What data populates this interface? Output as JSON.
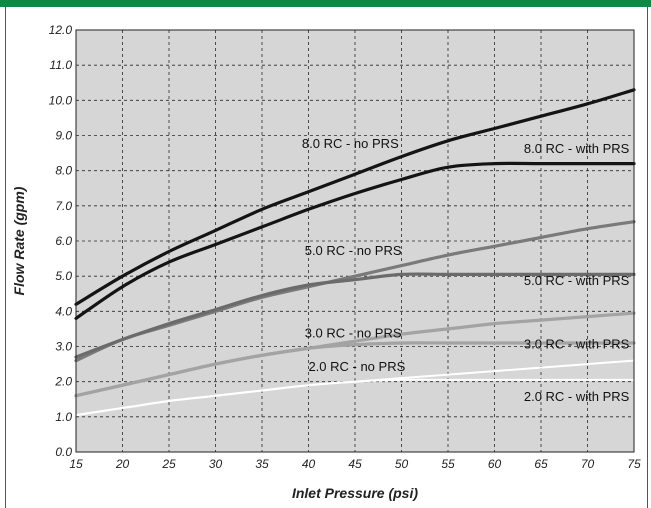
{
  "chart_data": {
    "type": "line",
    "xlabel": "Inlet Pressure (psi)",
    "ylabel": "Flow Rate (gpm)",
    "xlim": [
      15,
      75
    ],
    "ylim": [
      0,
      12
    ],
    "x_ticks": [
      "15",
      "20",
      "25",
      "30",
      "35",
      "40",
      "45",
      "50",
      "55",
      "60",
      "65",
      "70",
      "75"
    ],
    "y_ticks": [
      "0.0",
      "1.0",
      "2.0",
      "3.0",
      "4.0",
      "5.0",
      "6.0",
      "7.0",
      "8.0",
      "9.0",
      "10.0",
      "11.0",
      "12.0"
    ],
    "grid": true,
    "background": "#d6d6d6",
    "series": [
      {
        "name": "8.0 RC - no PRS",
        "color": "#141414",
        "width": 3.2,
        "x": [
          15,
          20,
          25,
          30,
          35,
          40,
          45,
          50,
          55,
          60,
          65,
          70,
          75
        ],
        "y": [
          4.2,
          5.0,
          5.7,
          6.3,
          6.9,
          7.4,
          7.9,
          8.4,
          8.85,
          9.2,
          9.55,
          9.9,
          10.3
        ]
      },
      {
        "name": "8.0 RC - with PRS",
        "color": "#141414",
        "width": 3.2,
        "x": [
          15,
          20,
          25,
          30,
          35,
          40,
          45,
          50,
          55,
          60,
          65,
          70,
          75
        ],
        "y": [
          3.8,
          4.7,
          5.4,
          5.9,
          6.4,
          6.9,
          7.35,
          7.75,
          8.1,
          8.2,
          8.2,
          8.2,
          8.2
        ]
      },
      {
        "name": "5.0 RC - no PRS",
        "color": "#7a7a7a",
        "width": 3.2,
        "x": [
          15,
          20,
          25,
          30,
          35,
          40,
          45,
          50,
          55,
          60,
          65,
          70,
          75
        ],
        "y": [
          2.6,
          3.2,
          3.6,
          4.0,
          4.4,
          4.7,
          5.0,
          5.3,
          5.6,
          5.85,
          6.1,
          6.35,
          6.55
        ]
      },
      {
        "name": "5.0 RC - with PRS",
        "color": "#6b6b6b",
        "width": 3.2,
        "x": [
          15,
          20,
          25,
          30,
          35,
          40,
          45,
          50,
          55,
          60,
          65,
          70,
          75
        ],
        "y": [
          2.7,
          3.2,
          3.65,
          4.05,
          4.45,
          4.75,
          4.9,
          5.05,
          5.05,
          5.05,
          5.05,
          5.05,
          5.05
        ]
      },
      {
        "name": "3.0 RC - no PRS",
        "color": "#a3a3a3",
        "width": 3.2,
        "x": [
          15,
          20,
          25,
          30,
          35,
          40,
          45,
          50,
          55,
          60,
          65,
          70,
          75
        ],
        "y": [
          1.6,
          1.9,
          2.2,
          2.5,
          2.75,
          2.95,
          3.15,
          3.35,
          3.5,
          3.65,
          3.75,
          3.85,
          3.95
        ]
      },
      {
        "name": "3.0 RC - with PRS",
        "color": "#a3a3a3",
        "width": 3.2,
        "x": [
          15,
          20,
          25,
          30,
          35,
          40,
          45,
          50,
          55,
          60,
          65,
          70,
          75
        ],
        "y": [
          1.6,
          1.9,
          2.2,
          2.5,
          2.75,
          2.95,
          3.05,
          3.1,
          3.1,
          3.1,
          3.1,
          3.1,
          3.1
        ]
      },
      {
        "name": "2.0 RC - no PRS",
        "color": "#ffffff",
        "width": 2,
        "x": [
          15,
          20,
          25,
          30,
          35,
          40,
          45,
          50,
          55,
          60,
          65,
          70,
          75
        ],
        "y": [
          1.05,
          1.25,
          1.45,
          1.6,
          1.75,
          1.9,
          2.0,
          2.1,
          2.2,
          2.3,
          2.4,
          2.5,
          2.6
        ]
      },
      {
        "name": "2.0 RC - with PRS",
        "color": "#ffffff",
        "width": 2,
        "x": [
          15,
          20,
          25,
          30,
          35,
          40,
          45,
          50,
          55,
          60,
          65,
          70,
          75
        ],
        "y": [
          1.05,
          1.25,
          1.45,
          1.6,
          1.75,
          1.9,
          2.0,
          2.05,
          2.05,
          2.05,
          2.05,
          2.05,
          2.05
        ]
      }
    ],
    "annotations": [
      {
        "text": "8.0 RC - no PRS",
        "x": 44.5,
        "y": 8.65,
        "anchor": "middle"
      },
      {
        "text": "8.0 RC - with PRS",
        "x": 74.5,
        "y": 8.5,
        "anchor": "end"
      },
      {
        "text": "5.0 RC - no PRS",
        "x": 44.8,
        "y": 5.6,
        "anchor": "middle"
      },
      {
        "text": "5.0 RC - with PRS",
        "x": 74.5,
        "y": 4.75,
        "anchor": "end"
      },
      {
        "text": "3.0 RC - no PRS",
        "x": 44.8,
        "y": 3.25,
        "anchor": "middle"
      },
      {
        "text": "3.0 RC - with PRS",
        "x": 74.5,
        "y": 2.95,
        "anchor": "end"
      },
      {
        "text": "2.0 RC - no PRS",
        "x": 45.2,
        "y": 2.3,
        "anchor": "middle"
      },
      {
        "text": "2.0 RC - with PRS",
        "x": 74.5,
        "y": 1.45,
        "anchor": "end"
      }
    ]
  }
}
